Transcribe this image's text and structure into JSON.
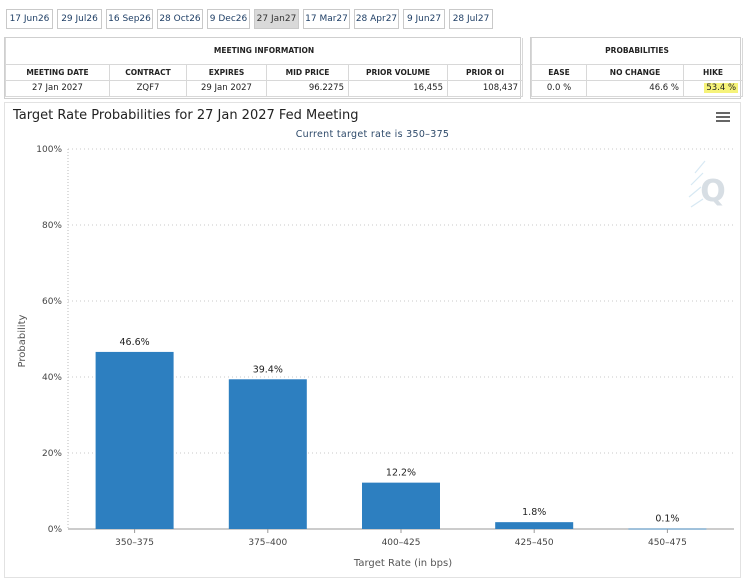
{
  "tabs": [
    {
      "label": "17 Jun26",
      "active": false
    },
    {
      "label": "29 Jul26",
      "active": false
    },
    {
      "label": "16 Sep26",
      "active": false
    },
    {
      "label": "28 Oct26",
      "active": false
    },
    {
      "label": "9 Dec26",
      "active": false
    },
    {
      "label": "27 Jan27",
      "active": true
    },
    {
      "label": "17 Mar27",
      "active": false
    },
    {
      "label": "28 Apr27",
      "active": false
    },
    {
      "label": "9 Jun27",
      "active": false
    },
    {
      "label": "28 Jul27",
      "active": false
    }
  ],
  "meeting_info": {
    "heading": "MEETING INFORMATION",
    "columns": [
      "MEETING DATE",
      "CONTRACT",
      "EXPIRES",
      "MID PRICE",
      "PRIOR VOLUME",
      "PRIOR OI"
    ],
    "row": {
      "meeting_date": "27 Jan 2027",
      "contract": "ZQF7",
      "expires": "29 Jan 2027",
      "mid_price": "96.2275",
      "prior_volume": "16,455",
      "prior_oi": "108,437"
    }
  },
  "probabilities": {
    "heading": "PROBABILITIES",
    "columns": [
      "EASE",
      "NO CHANGE",
      "HIKE"
    ],
    "row": {
      "ease": "0.0 %",
      "no_change": "46.6 %",
      "hike": "53.4 %"
    },
    "highlight_color": "#f6f37a"
  },
  "chart_data": {
    "type": "bar",
    "title": "Target Rate Probabilities for 27 Jan 2027 Fed Meeting",
    "subtitle": "Current target rate is 350–375",
    "xlabel": "Target Rate (in bps)",
    "ylabel": "Probability",
    "categories": [
      "350–375",
      "375–400",
      "400–425",
      "425–450",
      "450–475"
    ],
    "values": [
      46.6,
      39.4,
      12.2,
      1.8,
      0.1
    ],
    "value_labels": [
      "46.6%",
      "39.4%",
      "12.2%",
      "1.8%",
      "0.1%"
    ],
    "ylim": [
      0,
      100
    ],
    "yticks": [
      0,
      20,
      40,
      60,
      80,
      100
    ],
    "ytick_labels": [
      "0%",
      "20%",
      "40%",
      "60%",
      "80%",
      "100%"
    ],
    "grid": true,
    "bar_color": "#2d7fc0",
    "watermark_icon": "q-logo-icon"
  }
}
